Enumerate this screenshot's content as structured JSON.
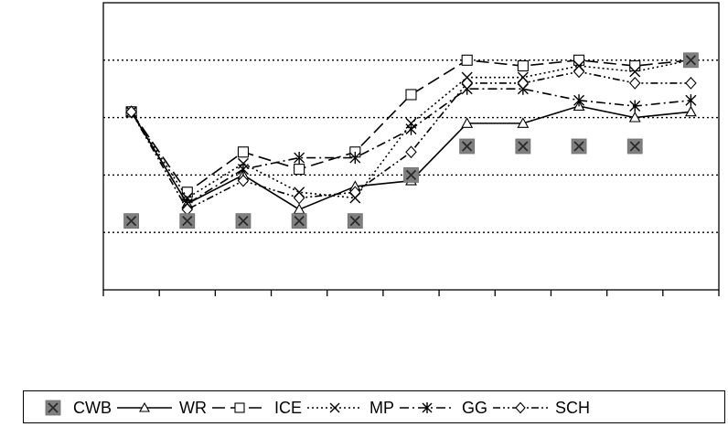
{
  "chart_data": {
    "type": "line",
    "title": "",
    "xlabel": "",
    "ylabel": "",
    "x": [
      1,
      2,
      3,
      4,
      5,
      6,
      7,
      8,
      9,
      10,
      11
    ],
    "ylim": [
      0,
      5
    ],
    "grid": "horizontal-dotted",
    "legend": "bottom",
    "series": [
      {
        "name": "CWB",
        "style": "markers-only",
        "marker": "square-x",
        "color": "#808080",
        "values": [
          1.2,
          1.2,
          1.2,
          1.2,
          1.2,
          2.0,
          2.5,
          2.5,
          2.5,
          2.5,
          4.0
        ]
      },
      {
        "name": "WR",
        "style": "solid",
        "marker": "triangle",
        "color": "#000000",
        "values": [
          3.1,
          1.5,
          2.0,
          1.4,
          1.8,
          1.9,
          2.9,
          2.9,
          3.2,
          3.0,
          3.1
        ]
      },
      {
        "name": "ICE",
        "style": "long-dash",
        "marker": "square",
        "color": "#000000",
        "values": [
          3.1,
          1.7,
          2.4,
          2.1,
          2.4,
          3.4,
          4.0,
          3.9,
          4.0,
          3.9,
          4.0
        ]
      },
      {
        "name": "MP",
        "style": "dotted",
        "marker": "x",
        "color": "#000000",
        "values": [
          3.1,
          1.6,
          2.2,
          1.7,
          1.6,
          2.9,
          3.7,
          3.7,
          3.9,
          3.8,
          4.0
        ]
      },
      {
        "name": "GG",
        "style": "dash-dot",
        "marker": "asterisk",
        "color": "#000000",
        "values": [
          3.1,
          1.5,
          2.1,
          2.3,
          2.3,
          2.8,
          3.5,
          3.5,
          3.3,
          3.2,
          3.3
        ]
      },
      {
        "name": "SCH",
        "style": "dash-dot-dot",
        "marker": "diamond",
        "color": "#000000",
        "values": [
          3.1,
          1.4,
          1.9,
          1.6,
          1.7,
          2.4,
          3.6,
          3.6,
          3.8,
          3.6,
          3.6
        ]
      }
    ]
  }
}
